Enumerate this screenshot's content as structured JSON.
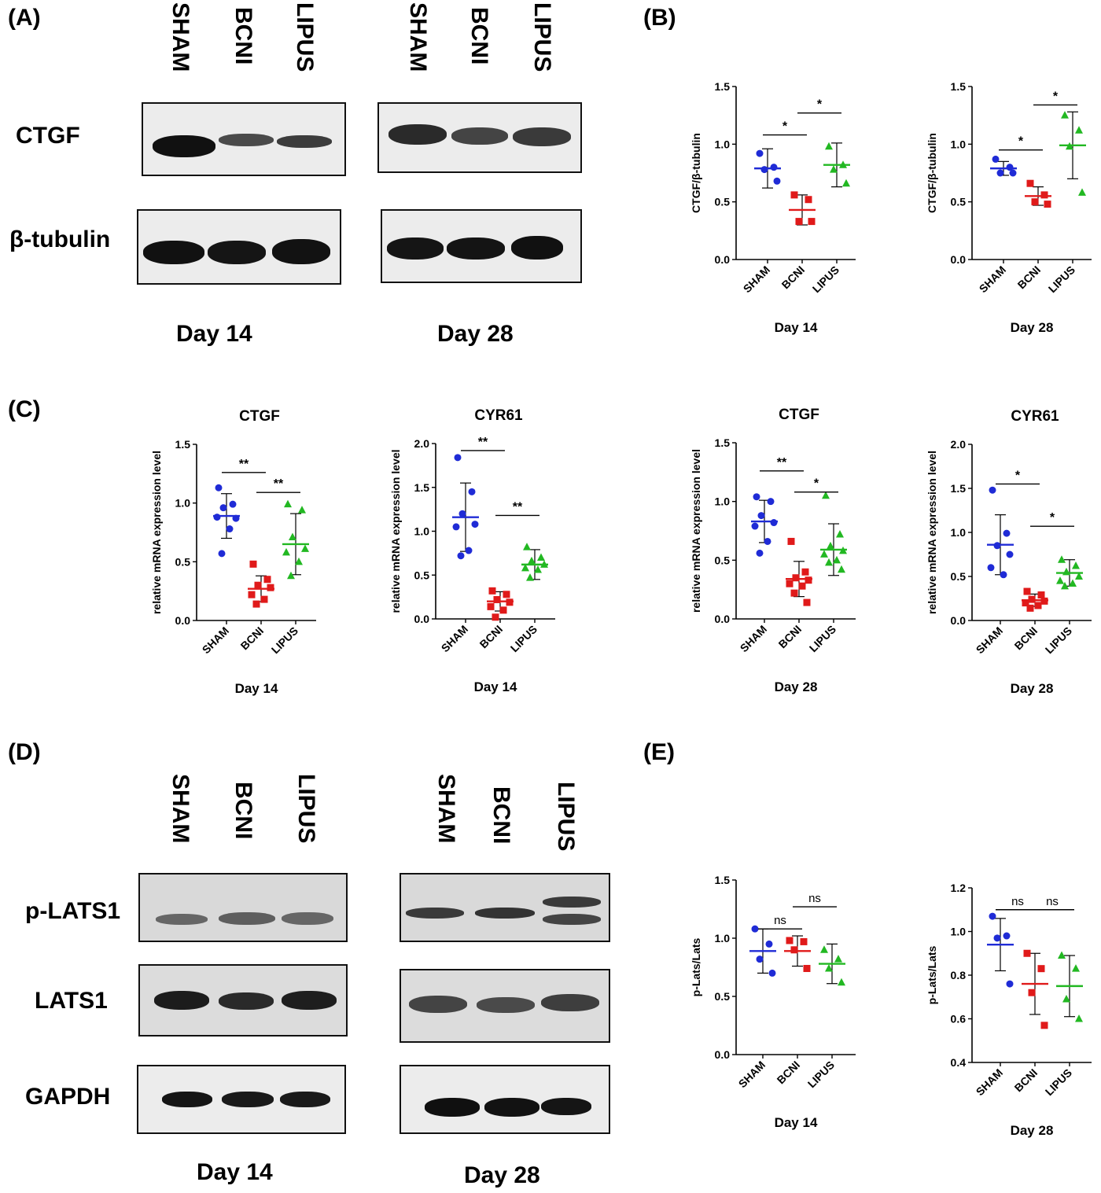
{
  "panels": {
    "A": "(A)",
    "B": "(B)",
    "C": "(C)",
    "D": "(D)",
    "E": "(E)"
  },
  "groups": [
    "SHAM",
    "BCNI",
    "LIPUS"
  ],
  "blots": {
    "A": {
      "rows": [
        "CTGF",
        "β-tubulin"
      ],
      "days": [
        "Day 14",
        "Day 28"
      ]
    },
    "D": {
      "rows": [
        "p-LATS1",
        "LATS1",
        "GAPDH"
      ],
      "days": [
        "Day 14",
        "Day 28"
      ]
    }
  },
  "colors": {
    "SHAM": "#1f2bd6",
    "BCNI": "#e01a1a",
    "LIPUS": "#22b822",
    "marker_shape": {
      "SHAM": "circle",
      "BCNI": "square",
      "LIPUS": "triangle"
    }
  },
  "chart_data": [
    {
      "type": "scatter",
      "panel": "B",
      "title": "",
      "xlabel": "Day 14",
      "ylabel": "CTGF/β-tubulin",
      "categories": [
        "SHAM",
        "BCNI",
        "LIPUS"
      ],
      "ylim": [
        0,
        1.5
      ],
      "yticks": [
        "0.0",
        "0.5",
        "1.0",
        "1.5"
      ],
      "series": [
        {
          "name": "SHAM",
          "points": [
            0.92,
            0.8,
            0.78,
            0.68
          ],
          "mean": 0.79,
          "sd": 0.17
        },
        {
          "name": "BCNI",
          "points": [
            0.56,
            0.52,
            0.33,
            0.33
          ],
          "mean": 0.43,
          "sd": 0.13
        },
        {
          "name": "LIPUS",
          "points": [
            0.98,
            0.82,
            0.78,
            0.66
          ],
          "mean": 0.82,
          "sd": 0.19
        }
      ],
      "significance": [
        {
          "from": 0,
          "to": 1,
          "label": "*",
          "y": 1.08
        },
        {
          "from": 1,
          "to": 2,
          "label": "*",
          "y": 1.27
        }
      ]
    },
    {
      "type": "scatter",
      "panel": "B",
      "title": "",
      "xlabel": "Day 28",
      "ylabel": "CTGF/β-tubulin",
      "categories": [
        "SHAM",
        "BCNI",
        "LIPUS"
      ],
      "ylim": [
        0,
        1.5
      ],
      "yticks": [
        "0.0",
        "0.5",
        "1.0",
        "1.5"
      ],
      "series": [
        {
          "name": "SHAM",
          "points": [
            0.87,
            0.8,
            0.75,
            0.75
          ],
          "mean": 0.79,
          "sd": 0.06
        },
        {
          "name": "BCNI",
          "points": [
            0.66,
            0.56,
            0.5,
            0.48
          ],
          "mean": 0.55,
          "sd": 0.08
        },
        {
          "name": "LIPUS",
          "points": [
            1.25,
            1.12,
            0.98,
            0.58
          ],
          "mean": 0.99,
          "sd": 0.29
        }
      ],
      "significance": [
        {
          "from": 0,
          "to": 1,
          "label": "*",
          "y": 0.95
        },
        {
          "from": 1,
          "to": 2,
          "label": "*",
          "y": 1.34
        }
      ]
    },
    {
      "type": "scatter",
      "panel": "C",
      "title": "CTGF",
      "xlabel": "Day 14",
      "ylabel": "relative mRNA expression level",
      "categories": [
        "SHAM",
        "BCNI",
        "LIPUS"
      ],
      "ylim": [
        0,
        1.5
      ],
      "yticks": [
        "0.0",
        "0.5",
        "1.0",
        "1.5"
      ],
      "series": [
        {
          "name": "SHAM",
          "points": [
            1.13,
            0.99,
            0.96,
            0.87,
            0.88,
            0.78,
            0.57
          ],
          "mean": 0.89,
          "sd": 0.19
        },
        {
          "name": "BCNI",
          "points": [
            0.48,
            0.35,
            0.3,
            0.28,
            0.22,
            0.18,
            0.14
          ],
          "mean": 0.27,
          "sd": 0.11
        },
        {
          "name": "LIPUS",
          "points": [
            0.99,
            0.94,
            0.71,
            0.61,
            0.58,
            0.5,
            0.38
          ],
          "mean": 0.65,
          "sd": 0.26
        }
      ],
      "significance": [
        {
          "from": 0,
          "to": 1,
          "label": "**",
          "y": 1.26
        },
        {
          "from": 1,
          "to": 2,
          "label": "**",
          "y": 1.09
        }
      ]
    },
    {
      "type": "scatter",
      "panel": "C",
      "title": "CYR61",
      "xlabel": "Day 14",
      "ylabel": "relative mRNA expression level",
      "categories": [
        "SHAM",
        "BCNI",
        "LIPUS"
      ],
      "ylim": [
        0,
        2.0
      ],
      "yticks": [
        "0.0",
        "0.5",
        "1.0",
        "1.5",
        "2.0"
      ],
      "series": [
        {
          "name": "SHAM",
          "points": [
            1.84,
            1.45,
            1.2,
            1.08,
            1.05,
            0.78,
            0.72
          ],
          "mean": 1.16,
          "sd": 0.39
        },
        {
          "name": "BCNI",
          "points": [
            0.32,
            0.28,
            0.22,
            0.19,
            0.14,
            0.1,
            0.02
          ],
          "mean": 0.2,
          "sd": 0.11
        },
        {
          "name": "LIPUS",
          "points": [
            0.82,
            0.7,
            0.66,
            0.62,
            0.58,
            0.56,
            0.47
          ],
          "mean": 0.62,
          "sd": 0.17
        }
      ],
      "significance": [
        {
          "from": 0,
          "to": 1,
          "label": "**",
          "y": 1.92
        },
        {
          "from": 1,
          "to": 2,
          "label": "**",
          "y": 1.18
        }
      ]
    },
    {
      "type": "scatter",
      "panel": "C",
      "title": "CTGF",
      "xlabel": "Day 28",
      "ylabel": "relative mRNA expression level",
      "categories": [
        "SHAM",
        "BCNI",
        "LIPUS"
      ],
      "ylim": [
        0,
        1.5
      ],
      "yticks": [
        "0.0",
        "0.5",
        "1.0",
        "1.5"
      ],
      "series": [
        {
          "name": "SHAM",
          "points": [
            1.04,
            1.0,
            0.88,
            0.82,
            0.79,
            0.66,
            0.56
          ],
          "mean": 0.83,
          "sd": 0.18
        },
        {
          "name": "BCNI",
          "points": [
            0.66,
            0.4,
            0.35,
            0.33,
            0.3,
            0.28,
            0.22,
            0.14
          ],
          "mean": 0.34,
          "sd": 0.15
        },
        {
          "name": "LIPUS",
          "points": [
            1.05,
            0.72,
            0.62,
            0.58,
            0.55,
            0.5,
            0.48,
            0.42
          ],
          "mean": 0.59,
          "sd": 0.22
        }
      ],
      "significance": [
        {
          "from": 0,
          "to": 1,
          "label": "**",
          "y": 1.26
        },
        {
          "from": 1,
          "to": 2,
          "label": "*",
          "y": 1.08
        }
      ]
    },
    {
      "type": "scatter",
      "panel": "C",
      "title": "CYR61",
      "xlabel": "Day 28",
      "ylabel": "relative mRNA expression level",
      "categories": [
        "SHAM",
        "BCNI",
        "LIPUS"
      ],
      "ylim": [
        0,
        2.0
      ],
      "yticks": [
        "0.0",
        "0.5",
        "1.0",
        "1.5",
        "2.0"
      ],
      "series": [
        {
          "name": "SHAM",
          "points": [
            1.48,
            0.99,
            0.85,
            0.75,
            0.6,
            0.52
          ],
          "mean": 0.86,
          "sd": 0.34
        },
        {
          "name": "BCNI",
          "points": [
            0.33,
            0.29,
            0.24,
            0.22,
            0.2,
            0.17,
            0.14
          ],
          "mean": 0.23,
          "sd": 0.07
        },
        {
          "name": "LIPUS",
          "points": [
            0.69,
            0.62,
            0.55,
            0.5,
            0.45,
            0.42,
            0.39
          ],
          "mean": 0.54,
          "sd": 0.15
        }
      ],
      "significance": [
        {
          "from": 0,
          "to": 1,
          "label": "*",
          "y": 1.55
        },
        {
          "from": 1,
          "to": 2,
          "label": "*",
          "y": 1.07
        }
      ]
    },
    {
      "type": "scatter",
      "panel": "E",
      "title": "",
      "xlabel": "Day 14",
      "ylabel": "p-Lats/Lats",
      "categories": [
        "SHAM",
        "BCNI",
        "LIPUS"
      ],
      "ylim": [
        0,
        1.5
      ],
      "yticks": [
        "0.0",
        "0.5",
        "1.0",
        "1.5"
      ],
      "series": [
        {
          "name": "SHAM",
          "points": [
            1.08,
            0.95,
            0.82,
            0.7
          ],
          "mean": 0.89,
          "sd": 0.19
        },
        {
          "name": "BCNI",
          "points": [
            0.98,
            0.97,
            0.9,
            0.74
          ],
          "mean": 0.89,
          "sd": 0.13
        },
        {
          "name": "LIPUS",
          "points": [
            0.9,
            0.82,
            0.74,
            0.62
          ],
          "mean": 0.78,
          "sd": 0.17
        }
      ],
      "significance": [
        {
          "from": 0,
          "to": 1,
          "label": "ns",
          "y": 1.08
        },
        {
          "from": 1,
          "to": 2,
          "label": "ns",
          "y": 1.27
        }
      ]
    },
    {
      "type": "scatter",
      "panel": "E",
      "title": "",
      "xlabel": "Day 28",
      "ylabel": "p-Lats/Lats",
      "categories": [
        "SHAM",
        "BCNI",
        "LIPUS"
      ],
      "ylim": [
        0.4,
        1.2
      ],
      "yticks": [
        "0.4",
        "0.6",
        "0.8",
        "1.0",
        "1.2"
      ],
      "series": [
        {
          "name": "SHAM",
          "points": [
            1.07,
            0.98,
            0.97,
            0.76
          ],
          "mean": 0.94,
          "sd": 0.12
        },
        {
          "name": "BCNI",
          "points": [
            0.9,
            0.83,
            0.72,
            0.57
          ],
          "mean": 0.76,
          "sd": 0.14
        },
        {
          "name": "LIPUS",
          "points": [
            0.89,
            0.83,
            0.69,
            0.6
          ],
          "mean": 0.75,
          "sd": 0.14
        }
      ],
      "significance": [
        {
          "from": 0,
          "to": 1,
          "label": "ns",
          "y": 1.1
        },
        {
          "from": 1,
          "to": 2,
          "label": "ns",
          "y": 1.1
        }
      ]
    }
  ]
}
